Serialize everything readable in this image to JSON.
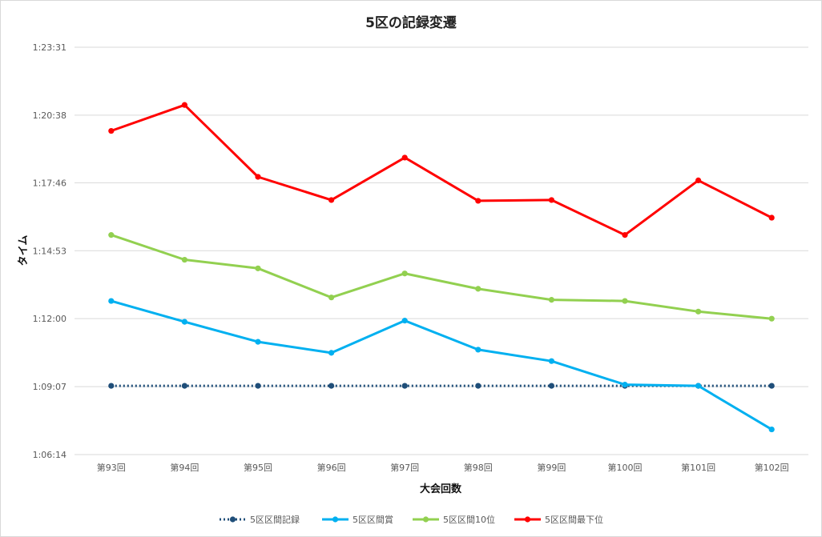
{
  "chart_data": {
    "type": "line",
    "title": "5区の記録変遷",
    "xlabel": "大会回数",
    "ylabel": "タイム",
    "categories": [
      "第93回",
      "第94回",
      "第95回",
      "第96回",
      "第97回",
      "第98回",
      "第99回",
      "第100回",
      "第101回",
      "第102回"
    ],
    "y_ticks": [
      "1:06:14",
      "1:09:07",
      "1:12:00",
      "1:14:53",
      "1:17:46",
      "1:20:38",
      "1:23:31"
    ],
    "ylim_seconds": [
      3974,
      5011
    ],
    "grid": true,
    "legend_position": "bottom",
    "series": [
      {
        "name": "5区区間記録",
        "color": "#1f4e79",
        "style": "dotted",
        "values": [
          "1:09:09",
          "1:09:09",
          "1:09:09",
          "1:09:09",
          "1:09:09",
          "1:09:09",
          "1:09:09",
          "1:09:09",
          "1:09:09",
          "1:09:09"
        ]
      },
      {
        "name": "5区区間賞",
        "color": "#00b0f0",
        "style": "solid",
        "values": [
          "1:12:45",
          "1:11:52",
          "1:11:01",
          "1:10:33",
          "1:11:55",
          "1:10:41",
          "1:10:12",
          "1:09:12",
          "1:09:09",
          "1:07:18"
        ]
      },
      {
        "name": "5区区間10位",
        "color": "#92d050",
        "style": "solid",
        "values": [
          "1:15:33",
          "1:14:30",
          "1:14:08",
          "1:12:54",
          "1:13:55",
          "1:13:16",
          "1:12:48",
          "1:12:45",
          "1:12:18",
          "1:12:00"
        ]
      },
      {
        "name": "5区区間最下位",
        "color": "#ff0000",
        "style": "solid",
        "values": [
          "1:19:58",
          "1:21:04",
          "1:18:01",
          "1:17:02",
          "1:18:50",
          "1:17:00",
          "1:17:02",
          "1:15:33",
          "1:17:52",
          "1:16:17"
        ]
      }
    ]
  }
}
